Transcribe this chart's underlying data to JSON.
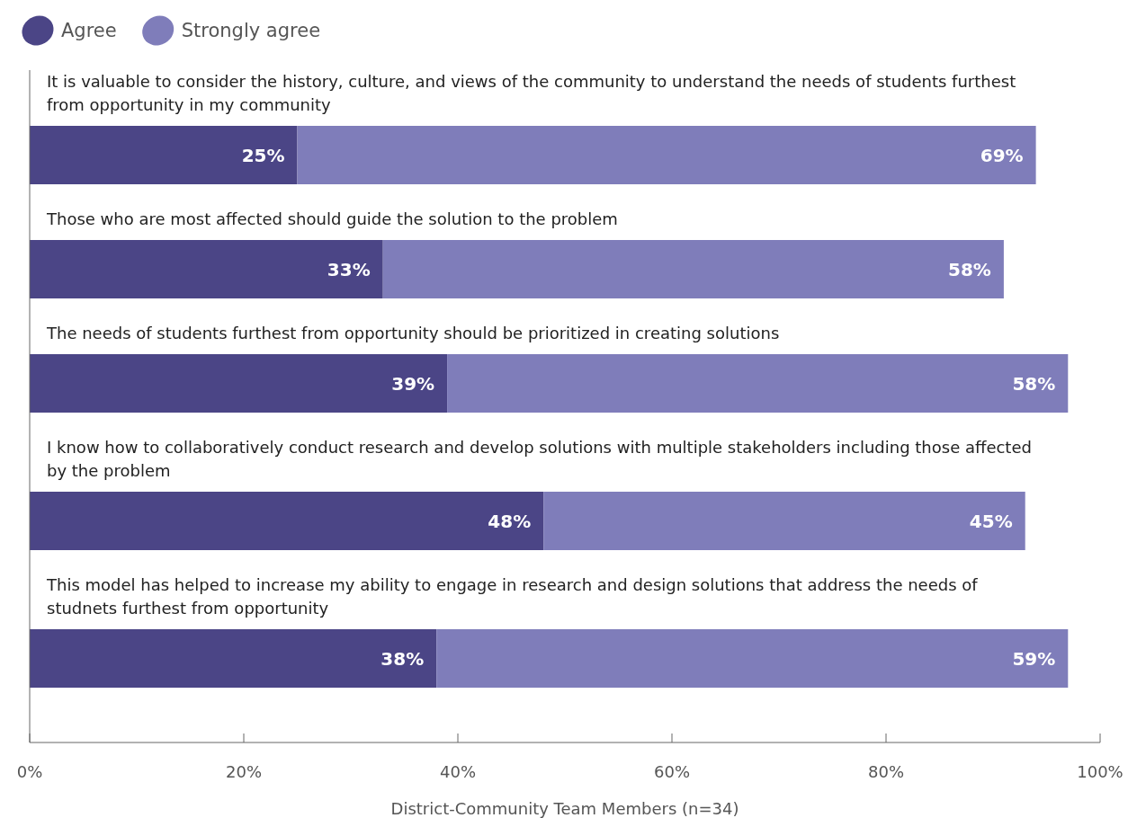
{
  "chart_data": {
    "type": "bar",
    "orientation": "horizontal",
    "stacked": true,
    "categories": [
      "It is valuable to consider the history, culture, and views of the community to understand the needs of students furthest from opportunity in my community",
      "Those who are most affected should guide the solution to the problem",
      "The needs of students furthest from opportunity should be prioritized in creating solutions",
      "I know how to collaboratively conduct research and develop solutions with multiple stakeholders including those affected by the problem",
      "This model has helped to increase my ability to engage in research and design solutions that address the needs of studnets furthest from opportunity"
    ],
    "series": [
      {
        "name": "Agree",
        "color": "#4b4586",
        "values": [
          25,
          33,
          39,
          48,
          38
        ],
        "value_labels": [
          "25%",
          "33%",
          "39%",
          "48%",
          "38%"
        ]
      },
      {
        "name": "Strongly agree",
        "color": "#7f7dba",
        "values": [
          69,
          58,
          58,
          45,
          59
        ],
        "value_labels": [
          "69%",
          "58%",
          "58%",
          "45%",
          "59%"
        ]
      }
    ],
    "xlim": [
      0,
      100
    ],
    "xticks": [
      {
        "value": 0,
        "label": "0%"
      },
      {
        "value": 20,
        "label": "20%"
      },
      {
        "value": 40,
        "label": "40%"
      },
      {
        "value": 60,
        "label": "60%"
      },
      {
        "value": 80,
        "label": "80%"
      },
      {
        "value": 100,
        "label": "100%"
      }
    ],
    "xlabel": "District-Community Team Members (n=34)",
    "legend": "top left",
    "grid": false
  }
}
